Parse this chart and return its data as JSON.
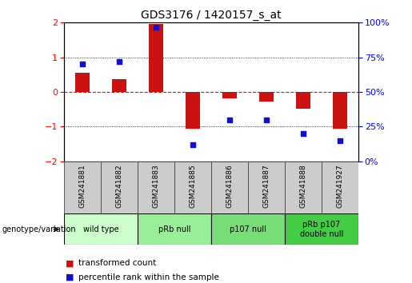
{
  "title": "GDS3176 / 1420157_s_at",
  "samples": [
    "GSM241881",
    "GSM241882",
    "GSM241883",
    "GSM241885",
    "GSM241886",
    "GSM241887",
    "GSM241888",
    "GSM241927"
  ],
  "transformed_count": [
    0.55,
    0.38,
    1.95,
    -1.05,
    -0.18,
    -0.28,
    -0.48,
    -1.05
  ],
  "percentile_rank": [
    70,
    72,
    97,
    12,
    30,
    30,
    20,
    15
  ],
  "bar_color": "#cc1111",
  "dot_color": "#1111cc",
  "ylim_left": [
    -2,
    2
  ],
  "ylim_right": [
    0,
    100
  ],
  "yticks_left": [
    -2,
    -1,
    0,
    1,
    2
  ],
  "yticks_right": [
    0,
    25,
    50,
    75,
    100
  ],
  "yticklabels_right": [
    "0%",
    "25%",
    "50%",
    "75%",
    "100%"
  ],
  "groups": [
    {
      "label": "wild type",
      "start": 0,
      "end": 2,
      "color": "#ccffcc"
    },
    {
      "label": "pRb null",
      "start": 2,
      "end": 4,
      "color": "#99ee99"
    },
    {
      "label": "p107 null",
      "start": 4,
      "end": 6,
      "color": "#77dd77"
    },
    {
      "label": "pRb p107\ndouble null",
      "start": 6,
      "end": 8,
      "color": "#44cc44"
    }
  ],
  "legend_items": [
    {
      "label": "transformed count",
      "color": "#cc1111"
    },
    {
      "label": "percentile rank within the sample",
      "color": "#1111cc"
    }
  ],
  "xlabel_group": "genotype/variation",
  "background_color": "#ffffff",
  "tick_label_area_color": "#cccccc",
  "bar_width": 0.4,
  "dot_size": 22
}
